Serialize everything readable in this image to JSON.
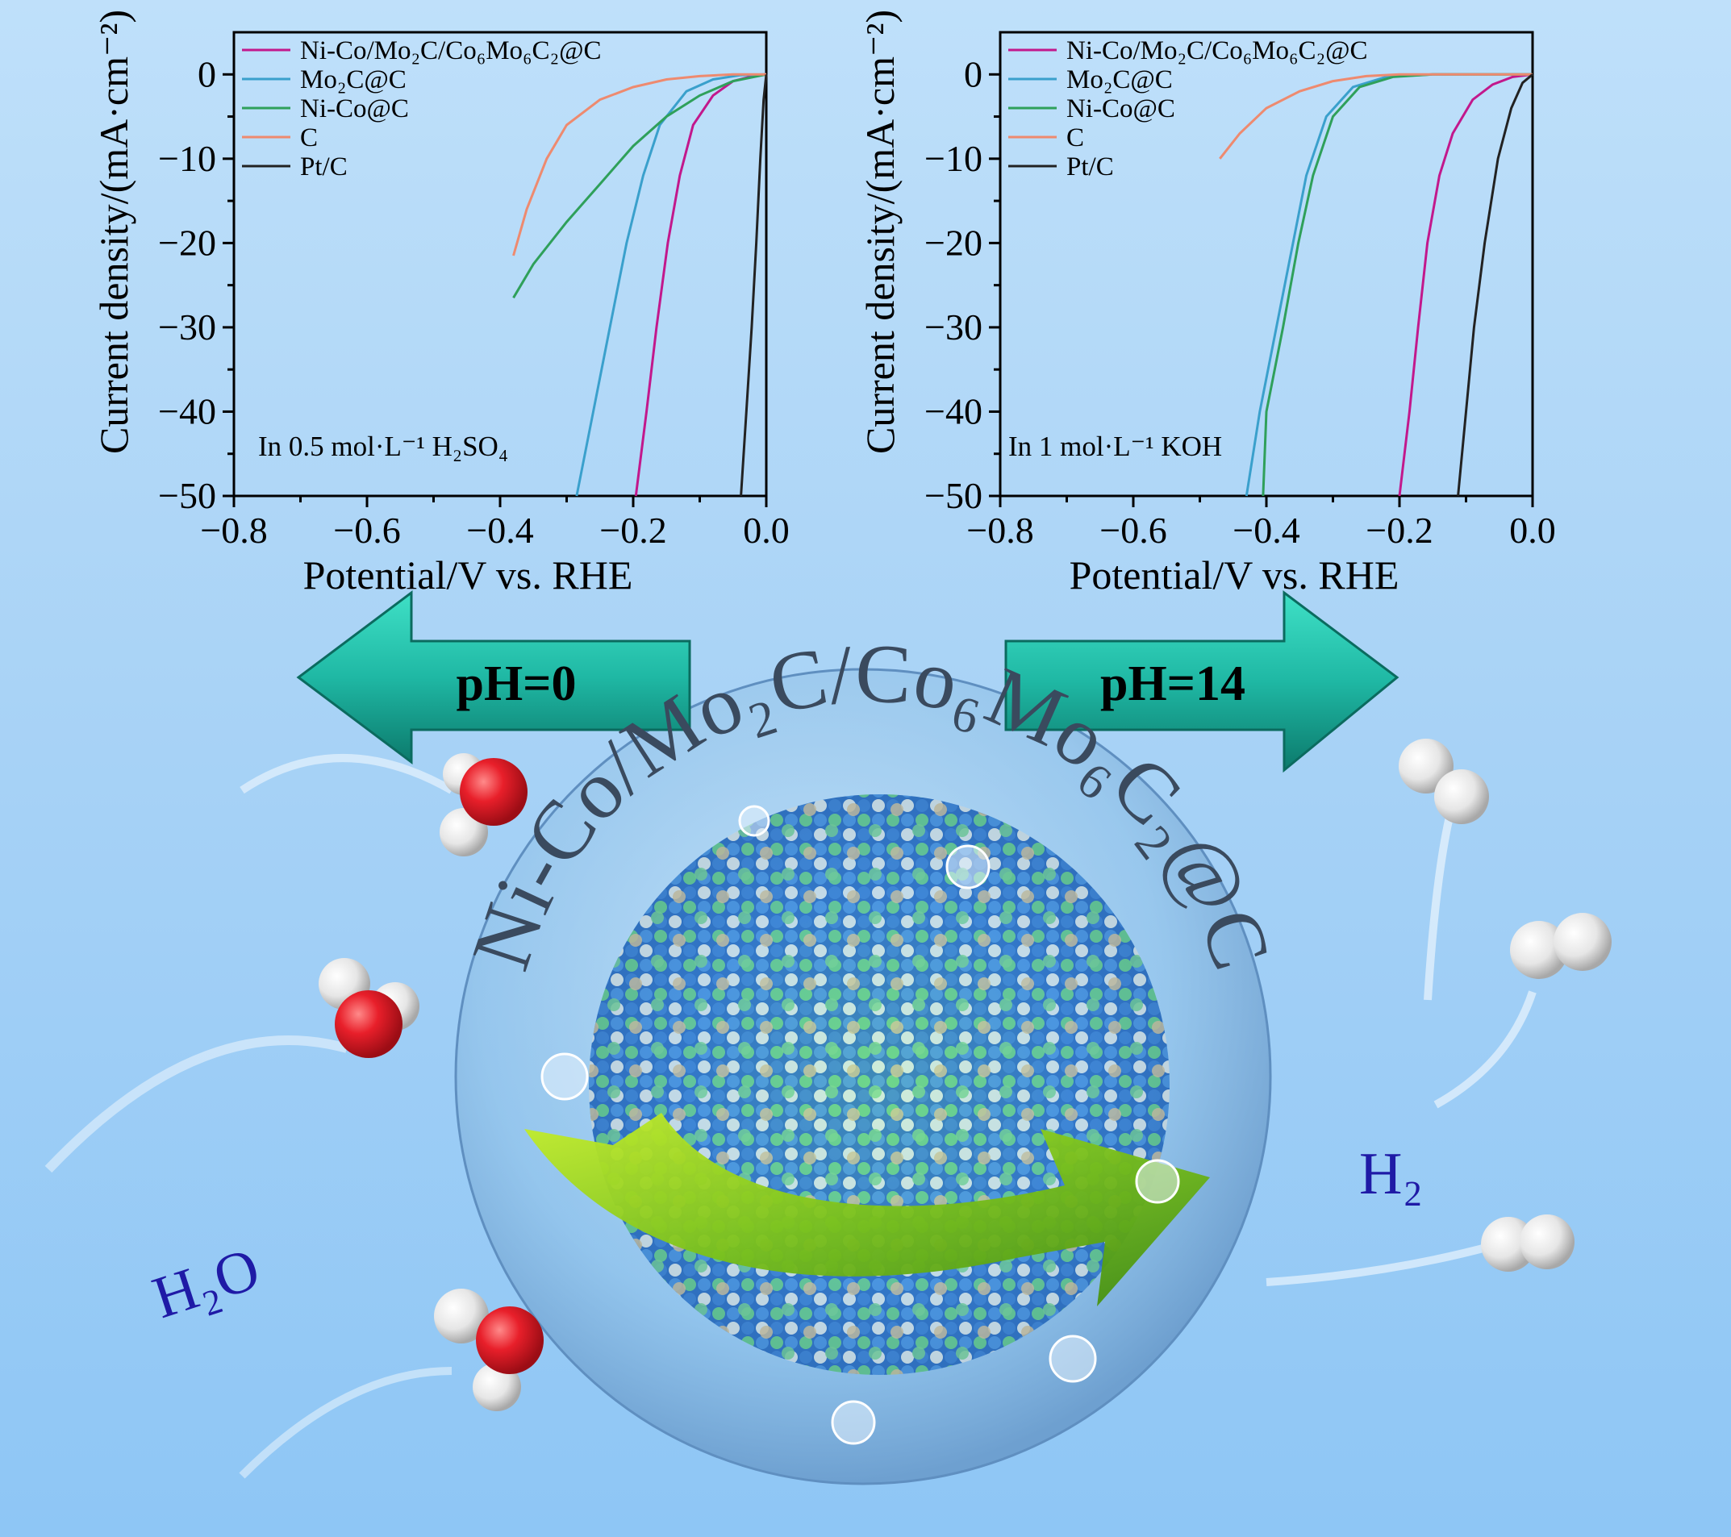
{
  "chart_data": [
    {
      "type": "line",
      "xlabel": "Potential/V vs. RHE",
      "ylabel": "Current density/(mA·cm⁻²)",
      "xlim": [
        -0.8,
        0.0
      ],
      "ylim": [
        -50,
        5
      ],
      "x_ticks": [
        "−0.8",
        "−0.6",
        "−0.4",
        "−0.2",
        "0.0"
      ],
      "y_ticks": [
        "0",
        "−10",
        "−20",
        "−30",
        "−40",
        "−50"
      ],
      "annotation": "In 0.5 mol·L⁻¹ H₂SO₄",
      "legend_position": "top-left",
      "series": [
        {
          "name": "Ni-Co/Mo₂C/Co₆Mo₆C₂@C",
          "color": "#c2188c",
          "points": [
            [
              -0.196,
              -50
            ],
            [
              -0.18,
              -40
            ],
            [
              -0.165,
              -30
            ],
            [
              -0.148,
              -20
            ],
            [
              -0.13,
              -12
            ],
            [
              -0.11,
              -6
            ],
            [
              -0.08,
              -2.5
            ],
            [
              -0.05,
              -0.8
            ],
            [
              -0.02,
              -0.2
            ],
            [
              0,
              0
            ]
          ]
        },
        {
          "name": "Mo₂C@C",
          "color": "#3aa0cc",
          "points": [
            [
              -0.285,
              -50
            ],
            [
              -0.26,
              -40
            ],
            [
              -0.235,
              -30
            ],
            [
              -0.21,
              -20
            ],
            [
              -0.185,
              -12
            ],
            [
              -0.16,
              -6
            ],
            [
              -0.12,
              -2
            ],
            [
              -0.08,
              -0.6
            ],
            [
              -0.04,
              -0.1
            ],
            [
              0,
              0
            ]
          ]
        },
        {
          "name": "Ni-Co@C",
          "color": "#2fa05a",
          "points": [
            [
              -0.38,
              -26.5
            ],
            [
              -0.35,
              -22.5
            ],
            [
              -0.3,
              -17.5
            ],
            [
              -0.25,
              -13
            ],
            [
              -0.2,
              -8.5
            ],
            [
              -0.15,
              -5
            ],
            [
              -0.1,
              -2.5
            ],
            [
              -0.05,
              -0.8
            ],
            [
              0,
              0
            ]
          ]
        },
        {
          "name": "C",
          "color": "#ee8a6f",
          "points": [
            [
              -0.38,
              -21.5
            ],
            [
              -0.36,
              -16
            ],
            [
              -0.33,
              -10
            ],
            [
              -0.3,
              -6
            ],
            [
              -0.25,
              -3
            ],
            [
              -0.2,
              -1.5
            ],
            [
              -0.15,
              -0.6
            ],
            [
              -0.1,
              -0.2
            ],
            [
              -0.05,
              0
            ],
            [
              0,
              0
            ]
          ]
        },
        {
          "name": "Pt/C",
          "color": "#222222",
          "points": [
            [
              -0.038,
              -50
            ],
            [
              -0.03,
              -40
            ],
            [
              -0.022,
              -30
            ],
            [
              -0.015,
              -20
            ],
            [
              -0.009,
              -10
            ],
            [
              -0.004,
              -3
            ],
            [
              0,
              0
            ]
          ]
        }
      ]
    },
    {
      "type": "line",
      "xlabel": "Potential/V vs. RHE",
      "ylabel": "Current density/(mA·cm⁻²)",
      "xlim": [
        -0.8,
        0.0
      ],
      "ylim": [
        -50,
        5
      ],
      "x_ticks": [
        "−0.8",
        "−0.6",
        "−0.4",
        "−0.2",
        "0.0"
      ],
      "y_ticks": [
        "0",
        "−10",
        "−20",
        "−30",
        "−40",
        "−50"
      ],
      "annotation": "In 1 mol·L⁻¹ KOH",
      "legend_position": "top-left",
      "series": [
        {
          "name": "Ni-Co/Mo₂C/Co₆Mo₆C₂@C",
          "color": "#c2188c",
          "points": [
            [
              -0.2,
              -50
            ],
            [
              -0.185,
              -40
            ],
            [
              -0.172,
              -30
            ],
            [
              -0.158,
              -20
            ],
            [
              -0.14,
              -12
            ],
            [
              -0.12,
              -7
            ],
            [
              -0.09,
              -3
            ],
            [
              -0.06,
              -1.2
            ],
            [
              -0.03,
              -0.3
            ],
            [
              0,
              0
            ]
          ]
        },
        {
          "name": "Mo₂C@C",
          "color": "#3aa0cc",
          "points": [
            [
              -0.43,
              -50
            ],
            [
              -0.41,
              -40
            ],
            [
              -0.385,
              -30
            ],
            [
              -0.36,
              -20
            ],
            [
              -0.34,
              -12
            ],
            [
              -0.31,
              -5
            ],
            [
              -0.27,
              -1.5
            ],
            [
              -0.22,
              -0.3
            ],
            [
              -0.15,
              0
            ],
            [
              0,
              0
            ]
          ]
        },
        {
          "name": "Ni-Co@C",
          "color": "#2fa05a",
          "points": [
            [
              -0.405,
              -50
            ],
            [
              -0.4,
              -40
            ],
            [
              -0.375,
              -30
            ],
            [
              -0.352,
              -20
            ],
            [
              -0.33,
              -12
            ],
            [
              -0.3,
              -5
            ],
            [
              -0.26,
              -1.5
            ],
            [
              -0.21,
              -0.3
            ],
            [
              -0.15,
              0
            ],
            [
              0,
              0
            ]
          ]
        },
        {
          "name": "C",
          "color": "#ee8a6f",
          "points": [
            [
              -0.47,
              -10
            ],
            [
              -0.44,
              -7
            ],
            [
              -0.4,
              -4
            ],
            [
              -0.35,
              -2
            ],
            [
              -0.3,
              -0.8
            ],
            [
              -0.25,
              -0.2
            ],
            [
              -0.2,
              0
            ],
            [
              0,
              0
            ]
          ]
        },
        {
          "name": "Pt/C",
          "color": "#222222",
          "points": [
            [
              -0.112,
              -50
            ],
            [
              -0.1,
              -40
            ],
            [
              -0.088,
              -30
            ],
            [
              -0.072,
              -20
            ],
            [
              -0.052,
              -10
            ],
            [
              -0.032,
              -4
            ],
            [
              -0.015,
              -1
            ],
            [
              0,
              0
            ]
          ]
        }
      ]
    }
  ],
  "labels": {
    "arrow_left": "pH=0",
    "arrow_right": "pH=14",
    "reactant": "H₂O",
    "product": "H₂",
    "catalyst": "Ni-Co/Mo₂C/Co₆Mo₆C₂@C"
  },
  "colors": {
    "background": "#a9d3f6",
    "arrow": "#1fb8a4",
    "label_blue": "#1f1aa6",
    "oxygen_red": "#e81f2a",
    "catalyst_text": "#3a4a5e"
  }
}
